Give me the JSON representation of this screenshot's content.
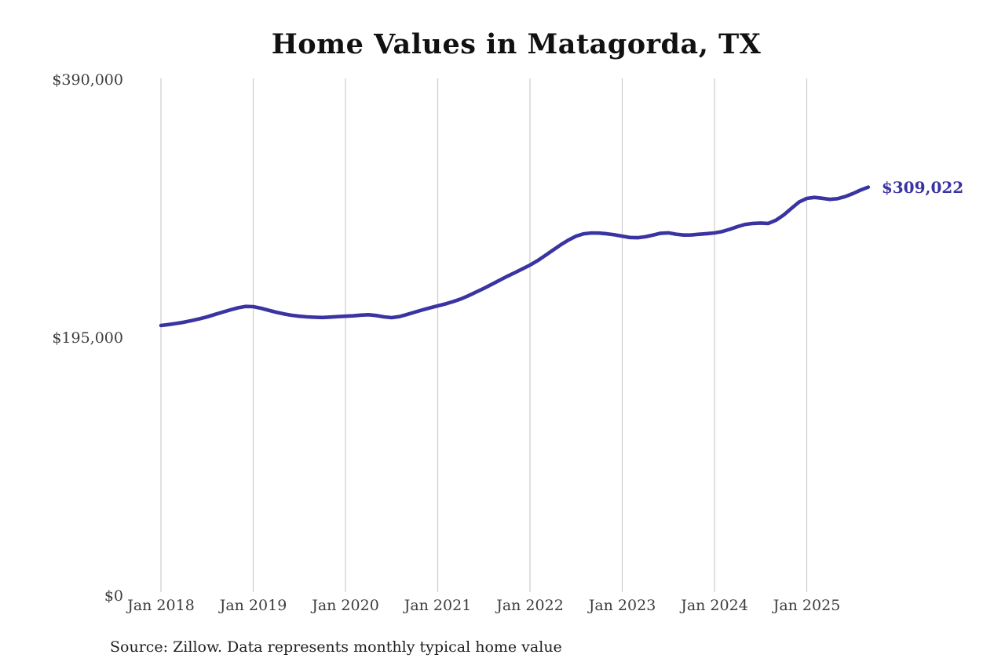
{
  "page": {
    "source_note": "Source: Zillow. Data represents monthly typical home value"
  },
  "colors": {
    "line": "#3a33a2",
    "grid": "#cbcbcb",
    "tick_text": "#3d3d3d",
    "title_text": "#111111"
  },
  "chart_data": {
    "type": "line",
    "title": "Home Values in Matagorda, TX",
    "xlabel": "",
    "ylabel": "",
    "unit": "USD",
    "legend": "none",
    "grid": "vertical-only",
    "ylim": [
      0,
      390000
    ],
    "y_ticks": [
      {
        "value": 0,
        "label": "$0"
      },
      {
        "value": 195000,
        "label": "$195,000"
      },
      {
        "value": 390000,
        "label": "$390,000"
      }
    ],
    "x_ticks": [
      "Jan 2018",
      "Jan 2019",
      "Jan 2020",
      "Jan 2021",
      "Jan 2022",
      "Jan 2023",
      "Jan 2024",
      "Jan 2025"
    ],
    "latest_value": 309022,
    "latest_label": "$309,022",
    "x": [
      "2018-01",
      "2018-02",
      "2018-03",
      "2018-04",
      "2018-05",
      "2018-06",
      "2018-07",
      "2018-08",
      "2018-09",
      "2018-10",
      "2018-11",
      "2018-12",
      "2019-01",
      "2019-02",
      "2019-03",
      "2019-04",
      "2019-05",
      "2019-06",
      "2019-07",
      "2019-08",
      "2019-09",
      "2019-10",
      "2019-11",
      "2019-12",
      "2020-01",
      "2020-02",
      "2020-03",
      "2020-04",
      "2020-05",
      "2020-06",
      "2020-07",
      "2020-08",
      "2020-09",
      "2020-10",
      "2020-11",
      "2020-12",
      "2021-01",
      "2021-02",
      "2021-03",
      "2021-04",
      "2021-05",
      "2021-06",
      "2021-07",
      "2021-08",
      "2021-09",
      "2021-10",
      "2021-11",
      "2021-12",
      "2022-01",
      "2022-02",
      "2022-03",
      "2022-04",
      "2022-05",
      "2022-06",
      "2022-07",
      "2022-08",
      "2022-09",
      "2022-10",
      "2022-11",
      "2022-12",
      "2023-01",
      "2023-02",
      "2023-03",
      "2023-04",
      "2023-05",
      "2023-06",
      "2023-07",
      "2023-08",
      "2023-09",
      "2023-10",
      "2023-11",
      "2023-12",
      "2024-01",
      "2024-02",
      "2024-03",
      "2024-04",
      "2024-05",
      "2024-06",
      "2024-07",
      "2024-08",
      "2024-09",
      "2024-10",
      "2024-11",
      "2024-12",
      "2025-01",
      "2025-02",
      "2025-03",
      "2025-04",
      "2025-05",
      "2025-06",
      "2025-07",
      "2025-08",
      "2025-09"
    ],
    "values": [
      204500,
      205200,
      206000,
      207000,
      208200,
      209500,
      211000,
      212800,
      214500,
      216200,
      217800,
      218900,
      218700,
      217500,
      216000,
      214500,
      213200,
      212200,
      211500,
      211000,
      210700,
      210500,
      210800,
      211200,
      211500,
      211800,
      212300,
      212600,
      212000,
      211000,
      210400,
      211200,
      212800,
      214500,
      216200,
      217800,
      219300,
      220800,
      222500,
      224500,
      227000,
      229800,
      232500,
      235500,
      238500,
      241500,
      244300,
      247200,
      250100,
      253500,
      257500,
      261500,
      265500,
      269000,
      272000,
      273800,
      274400,
      274300,
      273800,
      273000,
      272000,
      271000,
      270800,
      271500,
      272800,
      274200,
      274500,
      273500,
      272800,
      272900,
      273400,
      273900,
      274400,
      275500,
      277200,
      279200,
      280900,
      281600,
      281900,
      281600,
      284000,
      288000,
      293000,
      297800,
      300500,
      301300,
      300600,
      299800,
      300300,
      301900,
      304200,
      306800,
      309022
    ]
  }
}
